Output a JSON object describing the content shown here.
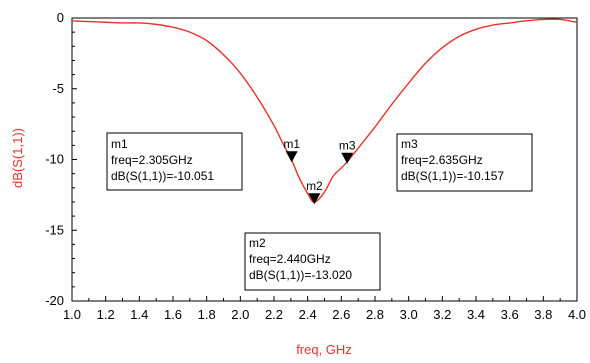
{
  "chart_data": {
    "type": "line",
    "xlabel": "freq, GHz",
    "ylabel": "dB(S(1,1))",
    "xlim": [
      1.0,
      4.0
    ],
    "ylim": [
      -20,
      0
    ],
    "x_ticks": [
      "1.0",
      "1.2",
      "1.4",
      "1.6",
      "1.8",
      "2.0",
      "2.2",
      "2.4",
      "2.6",
      "2.8",
      "3.0",
      "3.2",
      "3.4",
      "3.6",
      "3.8",
      "4.0"
    ],
    "y_ticks": [
      "0",
      "-5",
      "-10",
      "-15",
      "-20"
    ],
    "grid": false,
    "line_color": "#e8322b",
    "series": [
      {
        "x": [
          1.0,
          1.1,
          1.2,
          1.3,
          1.4,
          1.5,
          1.6,
          1.7,
          1.8,
          1.9,
          2.0,
          2.1,
          2.2,
          2.25,
          2.305,
          2.35,
          2.4,
          2.44,
          2.5,
          2.55,
          2.6,
          2.635,
          2.7,
          2.8,
          2.9,
          3.0,
          3.1,
          3.2,
          3.3,
          3.4,
          3.5,
          3.6,
          3.7,
          3.8,
          3.9,
          4.0
        ],
        "y": [
          -0.2,
          -0.25,
          -0.3,
          -0.35,
          -0.35,
          -0.45,
          -0.65,
          -1.0,
          -1.6,
          -2.6,
          -3.9,
          -5.6,
          -7.6,
          -8.8,
          -10.051,
          -11.3,
          -12.4,
          -13.02,
          -12.3,
          -11.2,
          -10.6,
          -10.157,
          -9.2,
          -7.7,
          -6.1,
          -4.6,
          -3.2,
          -2.1,
          -1.3,
          -0.8,
          -0.5,
          -0.35,
          -0.2,
          -0.1,
          -0.1,
          -0.3
        ]
      }
    ],
    "markers": [
      {
        "name": "m1",
        "freq": 2.305,
        "value": -10.051,
        "line1": "m1",
        "line2": "freq=2.305GHz",
        "line3": "dB(S(1,1))=-10.051"
      },
      {
        "name": "m2",
        "freq": 2.44,
        "value": -13.02,
        "line1": "m2",
        "line2": "freq=2.440GHz",
        "line3": "dB(S(1,1))=-13.020"
      },
      {
        "name": "m3",
        "freq": 2.635,
        "value": -10.157,
        "line1": "m3",
        "line2": "freq=2.635GHz",
        "line3": "dB(S(1,1))=-10.157"
      }
    ]
  }
}
